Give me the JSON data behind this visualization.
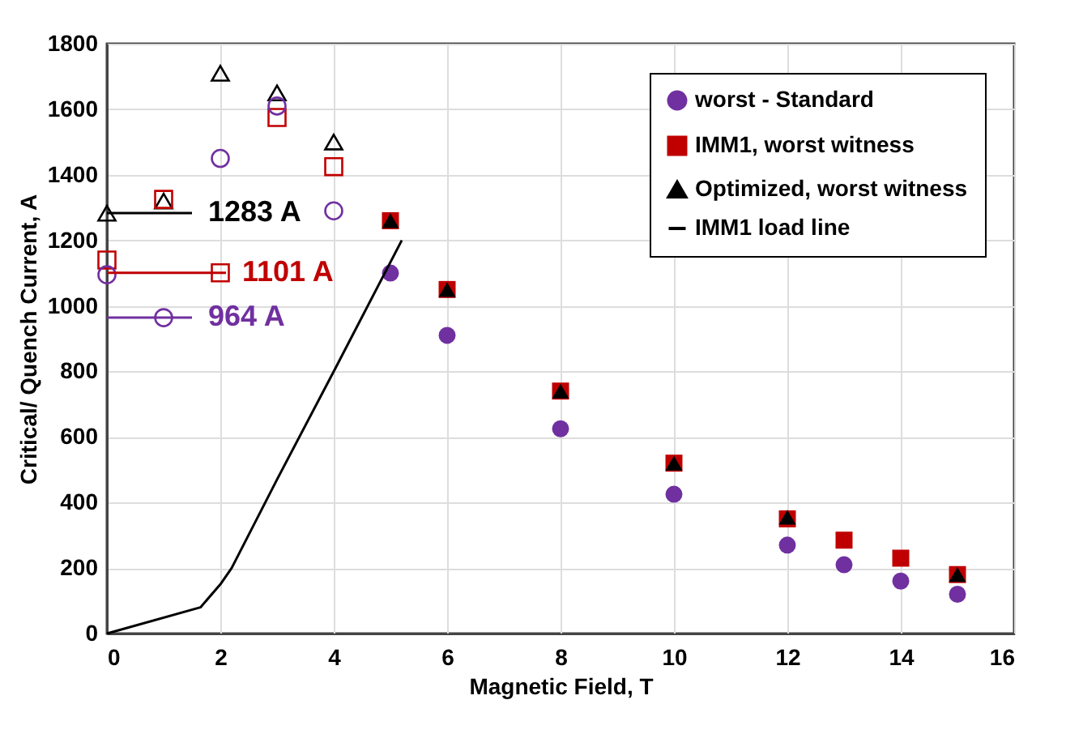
{
  "chart_data": {
    "type": "scatter",
    "xlabel": "Magnetic Field, T",
    "ylabel": "Critical/ Quench Current, A",
    "xlim": [
      0,
      16
    ],
    "xticks": [
      0,
      2,
      4,
      6,
      8,
      10,
      12,
      14,
      16
    ],
    "ylim": [
      0,
      1800
    ],
    "yticks": [
      0,
      200,
      400,
      600,
      800,
      1000,
      1200,
      1400,
      1600,
      1800
    ],
    "grid": true,
    "legend": "top right",
    "series": [
      {
        "name": "worst - Standard",
        "color": "#7030a0",
        "marker": "circle",
        "x": [
          5,
          6,
          8,
          10,
          12,
          13,
          14,
          15
        ],
        "values": [
          1100,
          910,
          625,
          425,
          270,
          210,
          160,
          120
        ]
      },
      {
        "name": "IMM1, worst witness",
        "color": "#c00000",
        "marker": "square",
        "x": [
          5,
          6,
          8,
          10,
          12,
          13,
          14,
          15
        ],
        "values": [
          1260,
          1050,
          740,
          520,
          350,
          285,
          230,
          180
        ]
      },
      {
        "name": "Optimized, worst witness",
        "color": "#000000",
        "marker": "triangle",
        "x": [
          5,
          6,
          8,
          10,
          12,
          15
        ],
        "values": [
          1260,
          1050,
          740,
          520,
          355,
          180
        ]
      },
      {
        "name": "IMM1 load line",
        "type": "line",
        "color": "#000000",
        "marker": "none",
        "x": [
          0,
          1.65,
          2,
          2.2,
          3,
          4,
          5.2
        ],
        "values": [
          0,
          80,
          150,
          200,
          470,
          800,
          1200
        ]
      },
      {
        "color": "#000000",
        "marker": "triangle",
        "x": [
          0,
          1,
          2,
          3,
          4
        ],
        "values": [
          1283,
          1320,
          1710,
          1650,
          1500
        ]
      },
      {
        "color": "#c00000",
        "marker": "square",
        "x": [
          0,
          1,
          2,
          3,
          4
        ],
        "values": [
          1140,
          1325,
          1101,
          1575,
          1425
        ]
      },
      {
        "color": "#7030a0",
        "marker": "circle",
        "x": [
          0,
          1,
          2,
          3,
          4
        ],
        "values": [
          1095,
          964,
          1450,
          1610,
          1290
        ]
      },
      {
        "type": "line",
        "color": "#000000",
        "marker": "none",
        "x": [
          0,
          1.5
        ],
        "values": [
          1283,
          1283
        ]
      },
      {
        "type": "line",
        "color": "#c00000",
        "marker": "none",
        "x": [
          0,
          2.1
        ],
        "values": [
          1101,
          1101
        ]
      },
      {
        "type": "line",
        "color": "#7030a0",
        "marker": "none",
        "x": [
          0,
          1.5
        ],
        "values": [
          964,
          964
        ]
      }
    ],
    "annotations": [
      "1283 A",
      "1101 A",
      "964 A"
    ]
  }
}
